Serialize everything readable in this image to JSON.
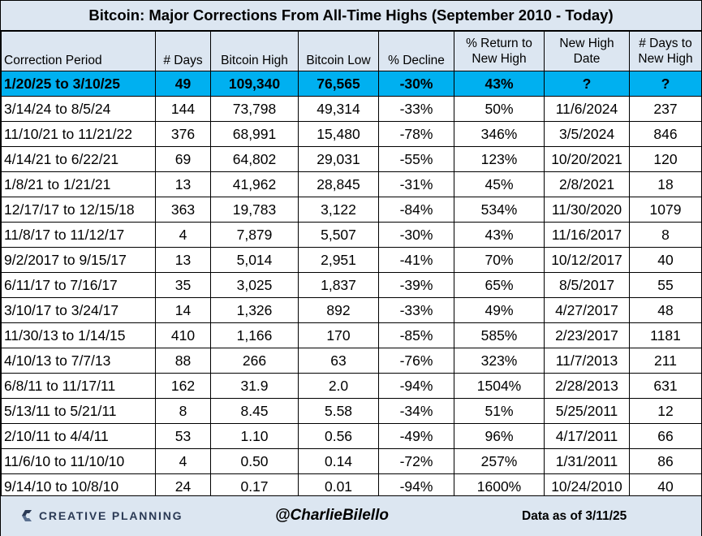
{
  "title": "Bitcoin: Major Corrections From All-Time Highs (September 2010 - Today)",
  "columns": {
    "period": "Correction Period",
    "days": "# Days",
    "high": "Bitcoin High",
    "low": "Bitcoin Low",
    "decline": "% Decline",
    "return_l1": "% Return to",
    "return_l2": "New High",
    "date_l1": "New High",
    "date_l2": "Date",
    "daysto_l1": "# Days to",
    "daysto_l2": "New High"
  },
  "rows": [
    {
      "period": "1/20/25 to 3/10/25",
      "days": "49",
      "high": "109,340",
      "low": "76,565",
      "decline": "-30%",
      "ret": "43%",
      "date": "?",
      "daysto": "?"
    },
    {
      "period": "3/14/24 to 8/5/24",
      "days": "144",
      "high": "73,798",
      "low": "49,314",
      "decline": "-33%",
      "ret": "50%",
      "date": "11/6/2024",
      "daysto": "237"
    },
    {
      "period": "11/10/21 to 11/21/22",
      "days": "376",
      "high": "68,991",
      "low": "15,480",
      "decline": "-78%",
      "ret": "346%",
      "date": "3/5/2024",
      "daysto": "846"
    },
    {
      "period": "4/14/21 to 6/22/21",
      "days": "69",
      "high": "64,802",
      "low": "29,031",
      "decline": "-55%",
      "ret": "123%",
      "date": "10/20/2021",
      "daysto": "120"
    },
    {
      "period": "1/8/21 to 1/21/21",
      "days": "13",
      "high": "41,962",
      "low": "28,845",
      "decline": "-31%",
      "ret": "45%",
      "date": "2/8/2021",
      "daysto": "18"
    },
    {
      "period": "12/17/17 to 12/15/18",
      "days": "363",
      "high": "19,783",
      "low": "3,122",
      "decline": "-84%",
      "ret": "534%",
      "date": "11/30/2020",
      "daysto": "1079"
    },
    {
      "period": "11/8/17 to 11/12/17",
      "days": "4",
      "high": "7,879",
      "low": "5,507",
      "decline": "-30%",
      "ret": "43%",
      "date": "11/16/2017",
      "daysto": "8"
    },
    {
      "period": "9/2/2017 to 9/15/17",
      "days": "13",
      "high": "5,014",
      "low": "2,951",
      "decline": "-41%",
      "ret": "70%",
      "date": "10/12/2017",
      "daysto": "40"
    },
    {
      "period": "6/11/17 to 7/16/17",
      "days": "35",
      "high": "3,025",
      "low": "1,837",
      "decline": "-39%",
      "ret": "65%",
      "date": "8/5/2017",
      "daysto": "55"
    },
    {
      "period": "3/10/17 to 3/24/17",
      "days": "14",
      "high": "1,326",
      "low": "892",
      "decline": "-33%",
      "ret": "49%",
      "date": "4/27/2017",
      "daysto": "48"
    },
    {
      "period": "11/30/13 to 1/14/15",
      "days": "410",
      "high": "1,166",
      "low": "170",
      "decline": "-85%",
      "ret": "585%",
      "date": "2/23/2017",
      "daysto": "1181"
    },
    {
      "period": "4/10/13 to 7/7/13",
      "days": "88",
      "high": "266",
      "low": "63",
      "decline": "-76%",
      "ret": "323%",
      "date": "11/7/2013",
      "daysto": "211"
    },
    {
      "period": "6/8/11 to 11/17/11",
      "days": "162",
      "high": "31.9",
      "low": "2.0",
      "decline": "-94%",
      "ret": "1504%",
      "date": "2/28/2013",
      "daysto": "631"
    },
    {
      "period": "5/13/11 to 5/21/11",
      "days": "8",
      "high": "8.45",
      "low": "5.58",
      "decline": "-34%",
      "ret": "51%",
      "date": "5/25/2011",
      "daysto": "12"
    },
    {
      "period": "2/10/11 to 4/4/11",
      "days": "53",
      "high": "1.10",
      "low": "0.56",
      "decline": "-49%",
      "ret": "96%",
      "date": "4/17/2011",
      "daysto": "66"
    },
    {
      "period": "11/6/10 to 11/10/10",
      "days": "4",
      "high": "0.50",
      "low": "0.14",
      "decline": "-72%",
      "ret": "257%",
      "date": "1/31/2011",
      "daysto": "86"
    },
    {
      "period": "9/14/10 to 10/8/10",
      "days": "24",
      "high": "0.17",
      "low": "0.01",
      "decline": "-94%",
      "ret": "1600%",
      "date": "10/24/2010",
      "daysto": "40"
    }
  ],
  "footer": {
    "logo_text": "CREATIVE PLANNING",
    "logo_icon": "creative-planning-c-icon",
    "handle": "@CharlieBilello",
    "as_of": "Data as of 3/11/25"
  },
  "colors": {
    "header_bg": "#dce6f1",
    "current_row_bg": "#00b0f0",
    "logo": "#2b3a55"
  },
  "chart_data": {
    "type": "table",
    "title": "Bitcoin: Major Corrections From All-Time Highs (September 2010 - Today)",
    "columns": [
      "Correction Period",
      "# Days",
      "Bitcoin High",
      "Bitcoin Low",
      "% Decline",
      "% Return to New High",
      "New High Date",
      "# Days to New High"
    ],
    "highlighted_row": 0
  }
}
